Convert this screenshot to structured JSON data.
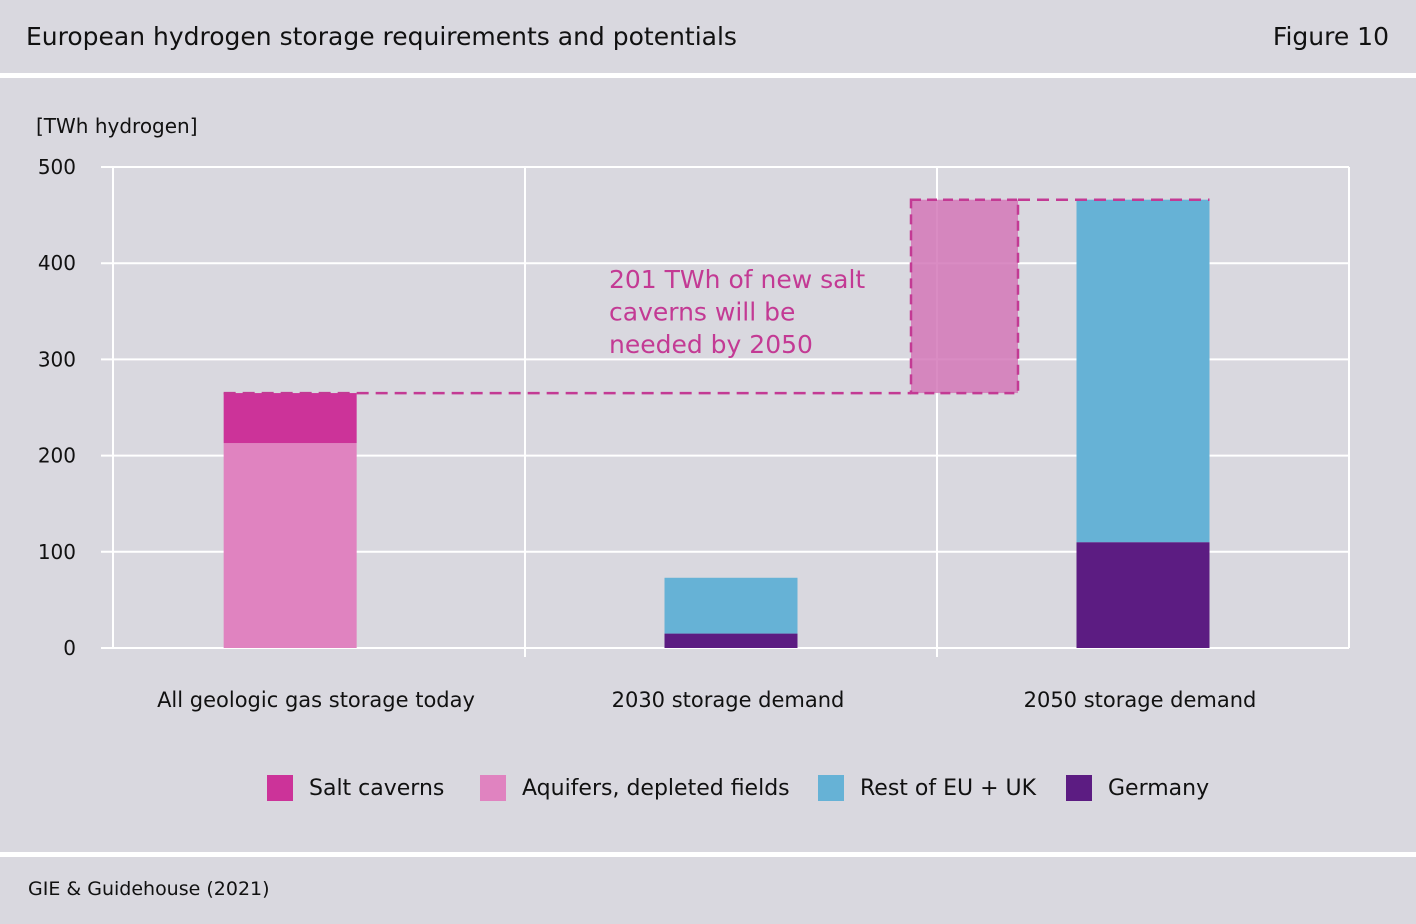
{
  "header": {
    "title": "European hydrogen storage requirements and potentials",
    "figure": "Figure 10"
  },
  "source": "GIE & Guidehouse (2021)",
  "colors": {
    "salt": "#cc3399",
    "aquifers": "#e083c0",
    "rest": "#66b2d6",
    "germany": "#5c1c82",
    "annotation": "#c33a94",
    "grid": "#ffffff"
  },
  "chart_data": {
    "type": "bar",
    "stacked": true,
    "ylabel": "[TWh hydrogen]",
    "ylim": [
      0,
      500
    ],
    "yticks": [
      0,
      100,
      200,
      300,
      400,
      500
    ],
    "categories": [
      "All geologic gas storage today",
      "2030 storage demand",
      "2050 storage demand"
    ],
    "series": [
      {
        "name": "Germany",
        "key": "germany",
        "values": [
          0,
          15,
          110
        ]
      },
      {
        "name": "Rest of EU + UK",
        "key": "rest",
        "values": [
          0,
          58,
          356
        ]
      },
      {
        "name": "Aquifers, depleted fields",
        "key": "aquifers",
        "values": [
          213,
          0,
          0
        ]
      },
      {
        "name": "Salt caverns",
        "key": "salt",
        "values": [
          52,
          0,
          0
        ]
      }
    ],
    "legend": [
      "Salt caverns",
      "Aquifers, depleted fields",
      "Rest of EU + UK",
      "Germany"
    ],
    "legend_keys": [
      "salt",
      "aquifers",
      "rest",
      "germany"
    ],
    "legend_position": "bottom",
    "grid": true,
    "annotation": {
      "lines": [
        "201 TWh of new salt",
        "caverns will be",
        "needed by 2050"
      ],
      "gap_from": 265,
      "gap_to": 466
    }
  }
}
